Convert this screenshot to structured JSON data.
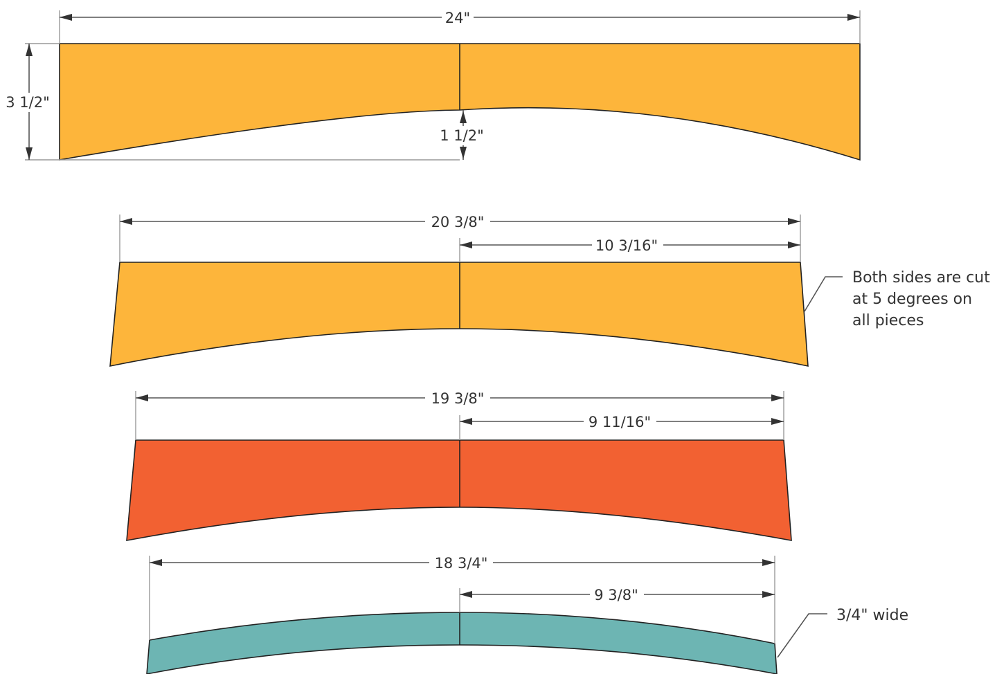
{
  "colors": {
    "board_1": "#FDB53B",
    "board_2": "#FDB53B",
    "board_3": "#F26132",
    "board_4": "#6DB5B3",
    "outline": "#222222",
    "dimension": "#555555"
  },
  "boards": [
    {
      "name": "board-1",
      "overall_length": "24\"",
      "height": "3 1/2\"",
      "arc_depth": "1 1/2\""
    },
    {
      "name": "board-2",
      "overall_length": "20 3/8\"",
      "half_length": "10 3/16\""
    },
    {
      "name": "board-3",
      "overall_length": "19 3/8\"",
      "half_length": "9 11/16\""
    },
    {
      "name": "board-4",
      "overall_length": "18 3/4\"",
      "half_length": "9 3/8\""
    }
  ],
  "notes": {
    "angle_note": [
      "Both sides are cut",
      "at 5 degrees on",
      "all pieces"
    ],
    "width_note": "3/4\" wide"
  }
}
